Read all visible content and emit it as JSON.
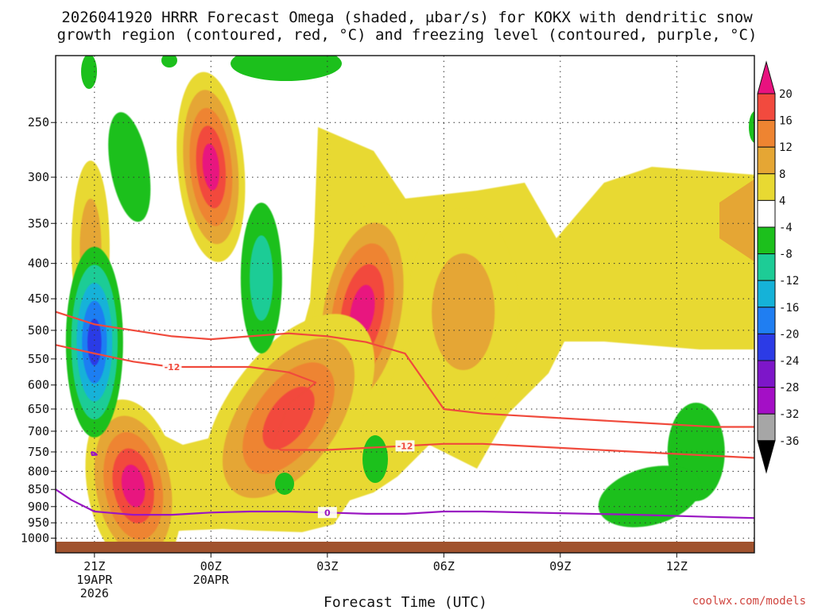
{
  "title_line1": "2026041920 HRRR Forecast Omega (shaded, μbar/s) for KOKX with dendritic snow",
  "title_line2": "growth region (contoured, red, °C) and freezing level (contoured, purple, °C)",
  "credit": "coolwx.com/models",
  "chart_data": {
    "type": "heatmap",
    "title": "2026041920 HRRR Forecast Omega (shaded, μbar/s) for KOKX with dendritic snow growth region (contoured, red, °C) and freezing level (contoured, purple, °C)",
    "xlabel": "Forecast Time (UTC)",
    "ylabel": "",
    "x_range_hours": [
      -1,
      17
    ],
    "y_range_mb": [
      1050,
      200
    ],
    "y_scale": "log-pressure",
    "grid": true,
    "x_ticks": [
      {
        "hour": 0,
        "label": [
          "21Z",
          "19APR",
          "2026"
        ]
      },
      {
        "hour": 3,
        "label": [
          "00Z",
          "20APR"
        ]
      },
      {
        "hour": 6,
        "label": [
          "03Z"
        ]
      },
      {
        "hour": 9,
        "label": [
          "06Z"
        ]
      },
      {
        "hour": 12,
        "label": [
          "09Z"
        ]
      },
      {
        "hour": 15,
        "label": [
          "12Z"
        ]
      }
    ],
    "y_ticks": [
      250,
      300,
      350,
      400,
      450,
      500,
      550,
      600,
      650,
      700,
      750,
      800,
      850,
      900,
      950,
      1000
    ],
    "colorbar": {
      "labels": [
        "20",
        "16",
        "12",
        "8",
        "4",
        "-4",
        "-8",
        "-12",
        "-16",
        "-20",
        "-24",
        "-28",
        "-32",
        "-36"
      ],
      "bins": [
        {
          "color": "#e8127f",
          "range": ">20"
        },
        {
          "color": "#f24a3e",
          "range": "16-20"
        },
        {
          "color": "#ee8431",
          "range": "12-16"
        },
        {
          "color": "#e5a634",
          "range": "8-12"
        },
        {
          "color": "#e8d932",
          "range": "4-8"
        },
        {
          "color": "#ffffff",
          "range": "-4-4"
        },
        {
          "color": "#1cc01c",
          "range": "-8--4"
        },
        {
          "color": "#1dcc96",
          "range": "-12--8"
        },
        {
          "color": "#15b2d8",
          "range": "-16--12"
        },
        {
          "color": "#1f7ef2",
          "range": "-20--16"
        },
        {
          "color": "#2c3be6",
          "range": "-24--20"
        },
        {
          "color": "#7d16c9",
          "range": "-28--24"
        },
        {
          "color": "#a40fc6",
          "range": "-32--28"
        },
        {
          "color": "#a6a6a6",
          "range": "-36--32"
        },
        {
          "color": "#000000",
          "range": "<-36"
        }
      ]
    },
    "omega_features": [
      {
        "kind": "rising",
        "max_value": 22,
        "hour": 6.9,
        "mb": 470
      },
      {
        "kind": "rising",
        "max_value": 22,
        "hour": 3.0,
        "mb": 290
      },
      {
        "kind": "rising",
        "max_value": 22,
        "hour": 1.0,
        "mb": 840
      },
      {
        "kind": "rising",
        "max_value": 17,
        "hour": 5.0,
        "mb": 670
      },
      {
        "kind": "rising",
        "max_value": 10,
        "hour": 9.5,
        "mb": 470
      },
      {
        "kind": "rising",
        "max_value": 9,
        "hour": -0.1,
        "mb": 380
      },
      {
        "kind": "sinking",
        "max_value": -22,
        "hour": 0.0,
        "mb": 520
      },
      {
        "kind": "sinking",
        "max_value": -10,
        "hour": 4.3,
        "mb": 420
      },
      {
        "kind": "sinking",
        "max_value": -6,
        "hour": 0.9,
        "mb": 290
      },
      {
        "kind": "sinking",
        "max_value": -6,
        "hour": 15.5,
        "mb": 750
      },
      {
        "kind": "sinking",
        "max_value": -6,
        "hour": 14.3,
        "mb": 870
      }
    ],
    "contour_labels": [
      "-12",
      "-12",
      "0"
    ],
    "series": [
      {
        "color": "#f04a3c",
        "hours": [
          -1,
          0,
          1,
          2,
          3,
          4,
          5,
          6,
          7,
          8,
          9,
          10,
          12,
          14,
          16,
          17
        ],
        "mb": [
          470,
          490,
          500,
          510,
          515,
          510,
          505,
          510,
          520,
          540,
          650,
          660,
          670,
          680,
          690,
          690
        ]
      },
      {
        "color": "#f04a3c",
        "hours": [
          -1,
          0,
          1,
          2,
          3,
          4,
          5,
          5.7,
          5.0,
          4.6,
          4.8,
          6,
          7,
          8,
          9,
          10,
          12,
          14,
          16,
          17
        ],
        "mb": [
          525,
          540,
          555,
          565,
          565,
          565,
          575,
          595,
          640,
          730,
          745,
          745,
          740,
          735,
          730,
          730,
          740,
          750,
          760,
          765
        ]
      },
      {
        "color": "#9a16c2",
        "hours": [
          -1,
          -0.6,
          0,
          1,
          2,
          3,
          4,
          5,
          6,
          7,
          8,
          9,
          10,
          12,
          14,
          16,
          17
        ],
        "mb": [
          850,
          880,
          915,
          925,
          925,
          918,
          915,
          915,
          918,
          922,
          922,
          915,
          915,
          920,
          925,
          932,
          935
        ]
      },
      {
        "color": "#9a16c2",
        "hours": [
          -0.08,
          0.0,
          0.06,
          -0.06,
          -0.08
        ],
        "mb": [
          750,
          752,
          757,
          758,
          750
        ]
      }
    ]
  }
}
